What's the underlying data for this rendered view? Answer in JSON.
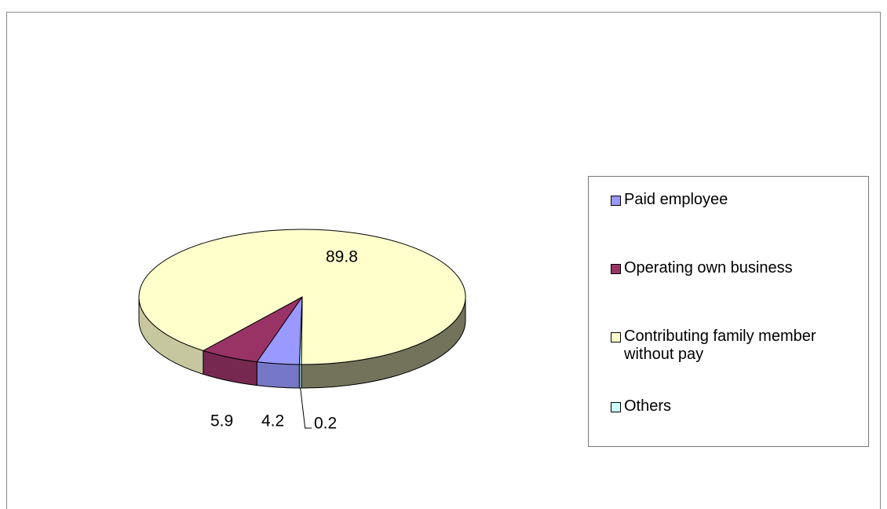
{
  "chart_data": {
    "type": "pie",
    "categories": [
      "Paid employee",
      "Operating own business",
      "Contributing family member without pay",
      "Others"
    ],
    "values": [
      4.2,
      5.9,
      89.8,
      0.2
    ],
    "colors": [
      "#9999ff",
      "#993366",
      "#ffffcc",
      "#ccffff"
    ],
    "legend": "right"
  }
}
